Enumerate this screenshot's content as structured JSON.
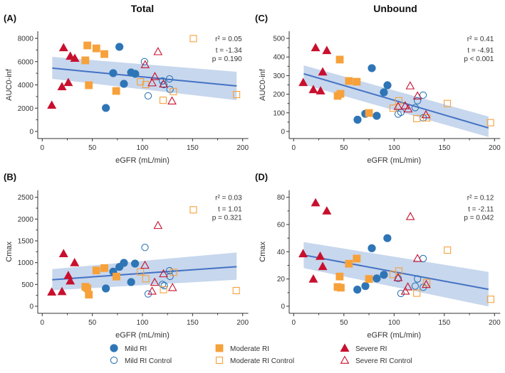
{
  "figure": {
    "column_titles": [
      "Total",
      "Unbound"
    ]
  },
  "colors": {
    "mild": "#2E75B6",
    "moderate": "#F7A13A",
    "severe": "#C8102E",
    "regression_line": "#4472C4",
    "ci_band": "#BDD0EA",
    "axis": "#333333"
  },
  "legend": [
    {
      "label": "Mild RI",
      "group": "mild",
      "marker": "circle",
      "filled": true
    },
    {
      "label": "Mild RI Control",
      "group": "mild",
      "marker": "circle",
      "filled": false
    },
    {
      "label": "Moderate RI",
      "group": "moderate",
      "marker": "square",
      "filled": true
    },
    {
      "label": "Moderate RI Control",
      "group": "moderate",
      "marker": "square",
      "filled": false
    },
    {
      "label": "Severe RI",
      "group": "severe",
      "marker": "triangle",
      "filled": true
    },
    {
      "label": "Severe RI Control",
      "group": "severe",
      "marker": "triangle",
      "filled": false
    }
  ],
  "chart_data": [
    {
      "id": "A",
      "panel_label": "(A)",
      "type": "scatter",
      "column": "Total",
      "xlabel": "eGFR (mL/min)",
      "ylabel": "AUC0-inf",
      "xlim": [
        0,
        200
      ],
      "ylim": [
        0,
        8000
      ],
      "xticks": [
        0,
        50,
        100,
        150,
        200
      ],
      "yticks": [
        0,
        2000,
        4000,
        6000,
        8000
      ],
      "stats": {
        "r2": "r² = 0.05",
        "t": "t = -1.34",
        "p": "p = 0.190"
      },
      "regression": {
        "x": [
          10,
          194
        ],
        "y": [
          5440,
          3910
        ],
        "ci_lower": [
          4520,
          2690
        ],
        "ci_upper": [
          6410,
          5130
        ]
      },
      "series": [
        {
          "name": "Mild RI",
          "x": [
            77,
            70.8,
            88.7,
            92.8,
            81.5,
            63.5
          ],
          "y": [
            7270,
            5010,
            5070,
            4950,
            4090,
            2020
          ]
        },
        {
          "name": "Mild RI Control",
          "x": [
            102,
            120,
            127,
            127.5,
            105.7,
            121.3
          ],
          "y": [
            6000,
            4340,
            4520,
            3610,
            3060,
            4030
          ]
        },
        {
          "name": "Moderate RI",
          "x": [
            45,
            54,
            62,
            43,
            46.5,
            73.8
          ],
          "y": [
            7390,
            7140,
            6650,
            6110,
            3970,
            3480
          ]
        },
        {
          "name": "Moderate RI Control",
          "x": [
            150.8,
            98,
            103.3,
            130.8,
            120.6,
            193.9
          ],
          "y": [
            7980,
            4270,
            4030,
            3430,
            2680,
            3170
          ]
        },
        {
          "name": "Severe RI",
          "x": [
            9.5,
            21.3,
            28,
            32.5,
            19.7,
            26
          ],
          "y": [
            2260,
            7200,
            6470,
            6290,
            3850,
            4210
          ]
        },
        {
          "name": "Severe RI Control",
          "x": [
            102.7,
            115.5,
            109.6,
            112.4,
            121,
            129.5
          ],
          "y": [
            5740,
            6860,
            4180,
            4720,
            4080,
            2620
          ]
        }
      ]
    },
    {
      "id": "B",
      "panel_label": "(B)",
      "type": "scatter",
      "column": "Total",
      "xlabel": "eGFR (mL/min)",
      "ylabel": "Cmax",
      "xlim": [
        0,
        200
      ],
      "ylim": [
        0,
        2500
      ],
      "xticks": [
        0,
        50,
        100,
        150,
        200
      ],
      "yticks": [
        0,
        500,
        1000,
        1500,
        2000,
        2500
      ],
      "stats": {
        "r2": "r² = 0.03",
        "t": "t = 1.01",
        "p": "p = 0.321"
      },
      "regression": {
        "x": [
          10,
          194
        ],
        "y": [
          608,
          908
        ],
        "ci_lower": [
          364,
          608
        ],
        "ci_upper": [
          853,
          1234
        ]
      },
      "series": [
        {
          "name": "Mild RI",
          "x": [
            70.8,
            77,
            81.5,
            92.6,
            88.7,
            63.5
          ],
          "y": [
            794,
            902,
            995,
            978,
            554,
            408
          ]
        },
        {
          "name": "Mild RI Control",
          "x": [
            102.5,
            127,
            127.5,
            120,
            121.8,
            105.7
          ],
          "y": [
            1349,
            815,
            685,
            500,
            473,
            282
          ]
        },
        {
          "name": "Moderate RI",
          "x": [
            54,
            62,
            74,
            43,
            45,
            46.5
          ],
          "y": [
            821,
            876,
            680,
            446,
            413,
            266
          ]
        },
        {
          "name": "Moderate RI Control",
          "x": [
            150.8,
            98,
            103.3,
            131,
            121,
            193.6
          ],
          "y": [
            2213,
            788,
            631,
            778,
            380,
            359
          ]
        },
        {
          "name": "Severe RI",
          "x": [
            9.5,
            19.7,
            21.3,
            32.3,
            26,
            28
          ],
          "y": [
            326,
            337,
            1207,
            1000,
            706,
            582
          ]
        },
        {
          "name": "Severe RI Control",
          "x": [
            115.5,
            102.5,
            121,
            112.2,
            109.6,
            130
          ],
          "y": [
            1854,
            941,
            745,
            549,
            347,
            429
          ]
        }
      ]
    },
    {
      "id": "C",
      "panel_label": "(C)",
      "type": "scatter",
      "column": "Unbound",
      "xlabel": "eGFR (mL/min)",
      "ylabel": "AUC0-inf",
      "xlim": [
        0,
        200
      ],
      "ylim": [
        0,
        500
      ],
      "xticks": [
        0,
        50,
        100,
        150,
        200
      ],
      "yticks": [
        0,
        100,
        200,
        300,
        400,
        500
      ],
      "stats": {
        "r2": "r² = 0.41",
        "t": "t = -4.91",
        "p": "p < 0.001"
      },
      "regression": {
        "x": [
          10,
          194
        ],
        "y": [
          310,
          19
        ],
        "ci_lower": [
          252,
          -30
        ],
        "ci_upper": [
          355,
          80
        ]
      },
      "series": [
        {
          "name": "Mild RI",
          "x": [
            77.8,
            93.4,
            89.8,
            71.3,
            82.7,
            63.6
          ],
          "y": [
            340,
            248,
            210,
            95,
            84,
            63
          ]
        },
        {
          "name": "Mild RI Control",
          "x": [
            128.9,
            123.3,
            121,
            104,
            106.8,
            129
          ],
          "y": [
            195,
            165,
            128,
            93,
            103,
            73
          ]
        },
        {
          "name": "Moderate RI",
          "x": [
            45.9,
            55,
            62.8,
            43.8,
            46.6,
            75
          ],
          "y": [
            386,
            271,
            267,
            191,
            202,
            99
          ]
        },
        {
          "name": "Moderate RI Control",
          "x": [
            153,
            104.7,
            99,
            122.6,
            132.5,
            196
          ],
          "y": [
            150,
            165,
            125,
            69,
            73,
            47
          ]
        },
        {
          "name": "Severe RI",
          "x": [
            9.5,
            21.8,
            33,
            28.9,
            19.6,
            26.8
          ],
          "y": [
            263,
            450,
            435,
            320,
            225,
            218
          ]
        },
        {
          "name": "Severe RI Control",
          "x": [
            116,
            123.3,
            104,
            111,
            114,
            131.7
          ],
          "y": [
            245,
            191,
            135,
            138,
            121,
            90
          ]
        }
      ]
    },
    {
      "id": "D",
      "panel_label": "(D)",
      "type": "scatter",
      "column": "Unbound",
      "xlabel": "eGFR (mL/min)",
      "ylabel": "Cmax",
      "xlim": [
        0,
        200
      ],
      "ylim": [
        0,
        80
      ],
      "xticks": [
        0,
        50,
        100,
        150,
        200
      ],
      "yticks": [
        0,
        20,
        40,
        60,
        80
      ],
      "stats": {
        "r2": "r² = 0.12",
        "t": "t = -2.11",
        "p": "p = 0.042"
      },
      "regression": {
        "x": [
          10,
          194
        ],
        "y": [
          37.6,
          12.4
        ],
        "ci_lower": [
          28,
          -0.2
        ],
        "ci_upper": [
          47.1,
          25.2
        ]
      },
      "series": [
        {
          "name": "Mild RI",
          "x": [
            93.3,
            77.8,
            89.8,
            82.7,
            71.4,
            63.4
          ],
          "y": [
            50,
            42.6,
            23.1,
            20.4,
            14.8,
            12.2
          ]
        },
        {
          "name": "Mild RI Control",
          "x": [
            128.9,
            123.3,
            121,
            129,
            104,
            106.8
          ],
          "y": [
            35,
            20,
            14.8,
            13.9,
            20.4,
            9.4
          ]
        },
        {
          "name": "Moderate RI",
          "x": [
            62.8,
            55,
            45.8,
            43.7,
            46.9,
            75
          ],
          "y": [
            35,
            31.2,
            21.8,
            14.1,
            13.6,
            20
          ]
        },
        {
          "name": "Moderate RI Control",
          "x": [
            153.1,
            104.7,
            99,
            132.5,
            122.6,
            196.2
          ],
          "y": [
            41.2,
            25.9,
            23.3,
            17.4,
            9.6,
            5.1
          ]
        },
        {
          "name": "Severe RI",
          "x": [
            21.8,
            33,
            9.4,
            26.4,
            28.9,
            19.6
          ],
          "y": [
            76,
            70,
            38.6,
            36.7,
            29.2,
            20
          ]
        },
        {
          "name": "Severe RI Control",
          "x": [
            116.2,
            123.3,
            104,
            113.7,
            111.2,
            132
          ],
          "y": [
            65.9,
            35.1,
            21,
            14.2,
            11.1,
            16
          ]
        }
      ]
    }
  ]
}
